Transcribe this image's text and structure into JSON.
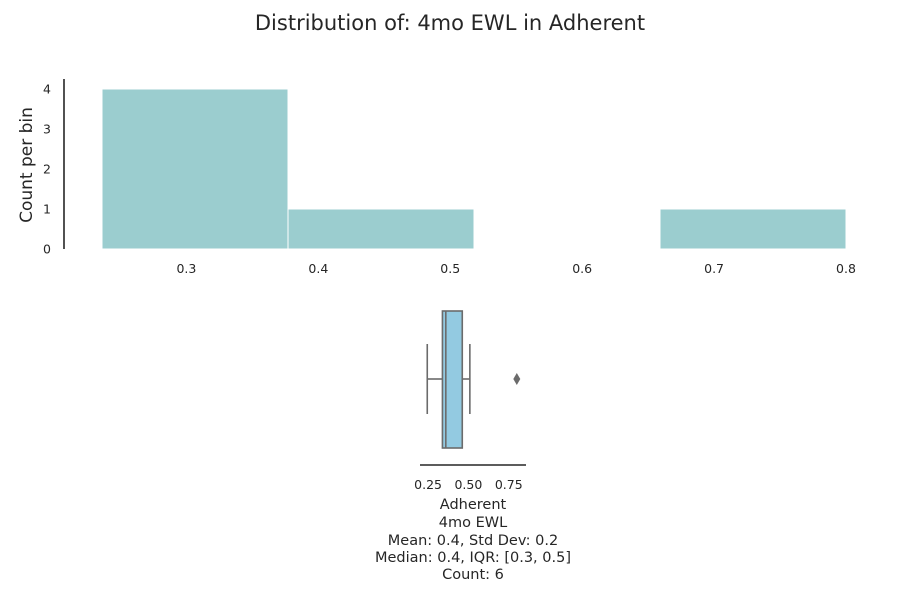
{
  "colors": {
    "histogram_fill": "#9bcdcf",
    "box_fill": "#93cae1",
    "box_line": "#6b6b6b",
    "axis_line": "#262626",
    "text": "#262626"
  },
  "chart_data": [
    {
      "type": "bar",
      "subtype": "histogram",
      "title": "Distribution of: 4mo EWL in Adherent",
      "xlabel": "",
      "ylabel": "Count per bin",
      "bins": [
        {
          "start": 0.236,
          "end": 0.377,
          "count": 4
        },
        {
          "start": 0.377,
          "end": 0.518,
          "count": 1
        },
        {
          "start": 0.518,
          "end": 0.659,
          "count": 0
        },
        {
          "start": 0.659,
          "end": 0.8,
          "count": 1
        }
      ],
      "xticks": [
        0.3,
        0.4,
        0.5,
        0.6,
        0.7,
        0.8
      ],
      "xtick_labels": [
        "0.3",
        "0.4",
        "0.5",
        "0.6",
        "0.7",
        "0.8"
      ],
      "yticks": [
        0,
        1,
        2,
        3,
        4
      ],
      "ytick_labels": [
        "0",
        "1",
        "2",
        "3",
        "4"
      ],
      "xlim": [
        0.2,
        0.81
      ],
      "ylim": [
        0,
        4.25
      ],
      "grid": false,
      "legend": "none"
    },
    {
      "type": "box",
      "orientation": "horizontal",
      "whisker_low": 0.245,
      "q1": 0.339,
      "median": 0.36,
      "q3": 0.462,
      "whisker_high": 0.509,
      "outliers": [
        0.8
      ],
      "xticks": [
        0.25,
        0.5,
        0.75
      ],
      "xtick_labels": [
        "0.25",
        "0.50",
        "0.75"
      ],
      "xlim": [
        0.2,
        0.857
      ],
      "caption_lines": [
        "Adherent",
        "4mo EWL",
        "Mean: 0.4, Std Dev: 0.2",
        "Median: 0.4, IQR: [0.3, 0.5]",
        "Count: 6"
      ]
    }
  ]
}
